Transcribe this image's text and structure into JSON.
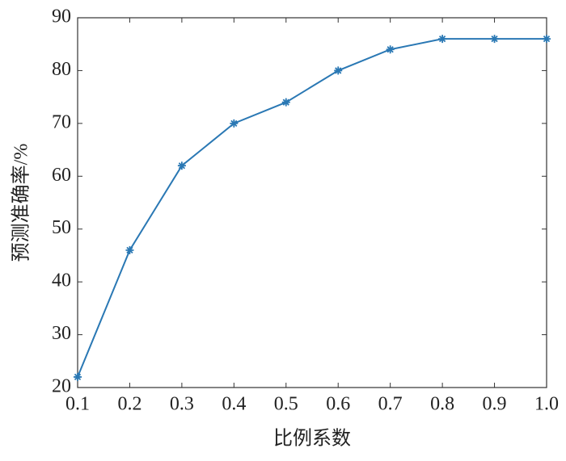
{
  "chart_data": {
    "type": "line",
    "x": [
      0.1,
      0.2,
      0.3,
      0.4,
      0.5,
      0.6,
      0.7,
      0.8,
      0.9,
      1.0
    ],
    "values": [
      22,
      46,
      62,
      70,
      74,
      80,
      84,
      86,
      86,
      86
    ],
    "color": "#2a78b4",
    "x_label": "比例系数",
    "y_label": "预测准确率/%",
    "xlim": [
      0.1,
      1.0
    ],
    "xticks": [
      0.1,
      0.2,
      0.3,
      0.4,
      0.5,
      0.6,
      0.7,
      0.8,
      0.9,
      {
        "value": 1.0,
        "label": "1.0"
      }
    ],
    "ylim": [
      20,
      90
    ],
    "yticks": [
      20,
      30,
      40,
      50,
      60,
      70,
      80,
      90
    ]
  }
}
